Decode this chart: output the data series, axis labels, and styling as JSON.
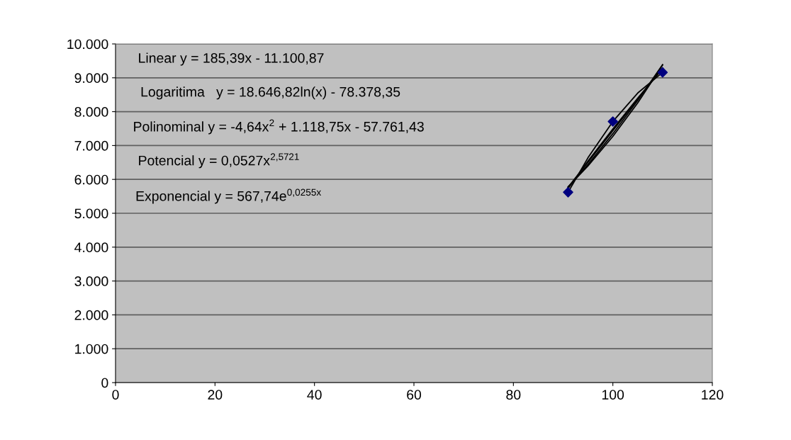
{
  "chart_data": {
    "type": "scatter",
    "xlim": [
      0,
      120
    ],
    "xticks": [
      0,
      20,
      40,
      60,
      80,
      100,
      120
    ],
    "ylim": [
      0,
      10000
    ],
    "yticks": [
      0,
      {
        "value": 1000,
        "label": "1.000"
      },
      {
        "value": 2000,
        "label": "2.000"
      },
      {
        "value": 3000,
        "label": "3.000"
      },
      {
        "value": 4000,
        "label": "4.000"
      },
      {
        "value": 5000,
        "label": "5.000"
      },
      {
        "value": 6000,
        "label": "6.000"
      },
      {
        "value": 7000,
        "label": "7.000"
      },
      {
        "value": 8000,
        "label": "8.000"
      },
      {
        "value": 9000,
        "label": "9.000"
      },
      {
        "value": 10000,
        "label": "10.000"
      }
    ],
    "grid": "y",
    "legend": false,
    "series": [
      {
        "marker": "diamond",
        "color": "#000080",
        "x": [
          91,
          100,
          110
        ],
        "values": [
          5620,
          7710,
          9160
        ]
      },
      {
        "type": "line",
        "marker": "none",
        "color": "#000000",
        "x": [
          91,
          95,
          100,
          105,
          110
        ],
        "values": [
          5770,
          6510,
          7440,
          8370,
          9290
        ]
      },
      {
        "type": "line",
        "marker": "none",
        "color": "#000000",
        "x": [
          91,
          95,
          100,
          105,
          110
        ],
        "values": [
          5730,
          6540,
          7490,
          8400,
          9270
        ]
      },
      {
        "type": "line",
        "marker": "none",
        "color": "#000000",
        "x": [
          91,
          95,
          100,
          105,
          110
        ],
        "values": [
          5620,
          6640,
          7710,
          8550,
          9160
        ]
      },
      {
        "type": "line",
        "marker": "none",
        "color": "#000000",
        "x": [
          91,
          95,
          100,
          105,
          110
        ],
        "values": [
          5760,
          6440,
          7350,
          8330,
          9390
        ]
      },
      {
        "type": "line",
        "marker": "none",
        "color": "#000000",
        "x": [
          91,
          95,
          100,
          105,
          110
        ],
        "values": [
          5780,
          6400,
          7270,
          8260,
          9380
        ]
      }
    ],
    "annotations": [
      "Linear y = 185,39x - 11.100,87",
      "Logaritima   y = 18.646,82ln(x) - 78.378,35",
      "Polinominal y = -4,64x$^{2}$ + 1.118,75x - 57.761,43",
      "Potencial y = 0,0527x$^{2,5721}$",
      "Exponencial y = 567,74e$^{0,0255x}$"
    ]
  }
}
